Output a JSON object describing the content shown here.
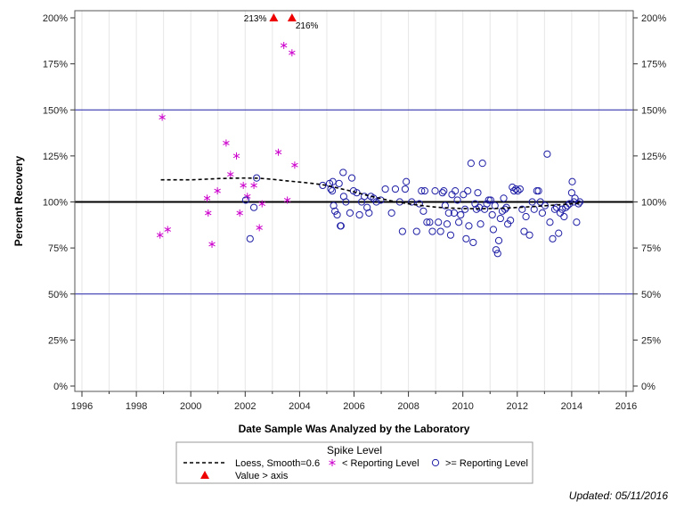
{
  "chart_data": {
    "type": "scatter",
    "xlabel": "Date Sample Was Analyzed by the Laboratory",
    "ylabel": "Percent Recovery",
    "xlim": [
      1996,
      2016
    ],
    "ylim": [
      0,
      205
    ],
    "x_ticks": [
      1996,
      1998,
      2000,
      2002,
      2004,
      2006,
      2008,
      2010,
      2012,
      2014,
      2016
    ],
    "x_tick_labels": [
      "1996",
      "1998",
      "2000",
      "2002",
      "2004",
      "2006",
      "2008",
      "2010",
      "2012",
      "2014",
      "2016"
    ],
    "y_ticks": [
      0,
      25,
      50,
      75,
      100,
      125,
      150,
      175,
      200
    ],
    "y_tick_labels": [
      "0%",
      "25%",
      "50%",
      "75%",
      "100%",
      "125%",
      "150%",
      "175%",
      "200%"
    ],
    "reference_lines": [
      {
        "y": 50,
        "color": "#1f1fa6",
        "style": "solid"
      },
      {
        "y": 100,
        "color": "#000000",
        "style": "solid-bold"
      },
      {
        "y": 150,
        "color": "#1f1fa6",
        "style": "solid"
      }
    ],
    "grid": "vertical-minor",
    "legend": {
      "title": "Spike Level",
      "placement": "bottom-center",
      "entries": [
        {
          "label": "Loess, Smooth=0.6",
          "marker": "dashed-line",
          "color": "#000000"
        },
        {
          "label": "< Reporting Level",
          "marker": "asterisk",
          "color": "#cc00cc"
        },
        {
          "label": ">= Reporting Level",
          "marker": "circle",
          "color": "#1f1fa6"
        },
        {
          "label": "Value > axis",
          "marker": "triangle",
          "color": "#ee0000"
        }
      ]
    },
    "footnote": "Updated: 05/11/2016",
    "series": [
      {
        "name": "< Reporting Level",
        "marker": "asterisk",
        "color": "#cc00cc",
        "points": [
          [
            1998.87,
            82
          ],
          [
            1998.95,
            146
          ],
          [
            1999.15,
            85
          ],
          [
            2000.6,
            102
          ],
          [
            2000.64,
            94
          ],
          [
            2000.78,
            77
          ],
          [
            2000.98,
            106
          ],
          [
            2001.3,
            132
          ],
          [
            2001.46,
            115
          ],
          [
            2001.68,
            125
          ],
          [
            2001.8,
            94
          ],
          [
            2001.93,
            109
          ],
          [
            2002.08,
            103
          ],
          [
            2002.32,
            109
          ],
          [
            2002.52,
            86
          ],
          [
            2002.62,
            99
          ],
          [
            2003.22,
            127
          ],
          [
            2003.42,
            185
          ],
          [
            2003.55,
            101
          ],
          [
            2003.72,
            181
          ],
          [
            2003.82,
            120
          ]
        ]
      },
      {
        "name": ">= Reporting Level",
        "marker": "circle",
        "color": "#1f1fa6",
        "points": [
          [
            2002.02,
            101
          ],
          [
            2002.18,
            80
          ],
          [
            2002.32,
            97
          ],
          [
            2002.42,
            113
          ],
          [
            2004.85,
            109
          ],
          [
            2005.1,
            110
          ],
          [
            2005.15,
            107
          ],
          [
            2005.2,
            106
          ],
          [
            2005.22,
            111
          ],
          [
            2005.25,
            98
          ],
          [
            2005.3,
            95
          ],
          [
            2005.38,
            93
          ],
          [
            2005.45,
            110
          ],
          [
            2005.5,
            87
          ],
          [
            2005.52,
            87
          ],
          [
            2005.6,
            116
          ],
          [
            2005.62,
            103
          ],
          [
            2005.7,
            100
          ],
          [
            2005.85,
            94
          ],
          [
            2005.92,
            113
          ],
          [
            2005.98,
            106
          ],
          [
            2006.1,
            105
          ],
          [
            2006.2,
            93
          ],
          [
            2006.28,
            100
          ],
          [
            2006.38,
            103
          ],
          [
            2006.48,
            97
          ],
          [
            2006.55,
            94
          ],
          [
            2006.62,
            103
          ],
          [
            2006.72,
            102
          ],
          [
            2006.82,
            100
          ],
          [
            2006.98,
            101
          ],
          [
            2007.15,
            107
          ],
          [
            2007.38,
            94
          ],
          [
            2007.52,
            107
          ],
          [
            2007.68,
            100
          ],
          [
            2007.78,
            84
          ],
          [
            2007.88,
            107
          ],
          [
            2007.92,
            111
          ],
          [
            2008.12,
            100
          ],
          [
            2008.3,
            84
          ],
          [
            2008.4,
            99
          ],
          [
            2008.48,
            106
          ],
          [
            2008.55,
            95
          ],
          [
            2008.6,
            106
          ],
          [
            2008.68,
            89
          ],
          [
            2008.78,
            89
          ],
          [
            2008.88,
            84
          ],
          [
            2008.98,
            106
          ],
          [
            2009.1,
            89
          ],
          [
            2009.18,
            84
          ],
          [
            2009.25,
            105
          ],
          [
            2009.3,
            106
          ],
          [
            2009.35,
            98
          ],
          [
            2009.42,
            88
          ],
          [
            2009.48,
            94
          ],
          [
            2009.55,
            82
          ],
          [
            2009.6,
            104
          ],
          [
            2009.68,
            94
          ],
          [
            2009.72,
            106
          ],
          [
            2009.8,
            101
          ],
          [
            2009.85,
            89
          ],
          [
            2009.92,
            93
          ],
          [
            2010.02,
            104
          ],
          [
            2010.08,
            96
          ],
          [
            2010.12,
            80
          ],
          [
            2010.18,
            106
          ],
          [
            2010.22,
            87
          ],
          [
            2010.3,
            121
          ],
          [
            2010.38,
            78
          ],
          [
            2010.45,
            99
          ],
          [
            2010.5,
            96
          ],
          [
            2010.55,
            105
          ],
          [
            2010.6,
            97
          ],
          [
            2010.65,
            88
          ],
          [
            2010.72,
            121
          ],
          [
            2010.8,
            96
          ],
          [
            2010.88,
            99
          ],
          [
            2010.95,
            101
          ],
          [
            2011.02,
            101
          ],
          [
            2011.08,
            93
          ],
          [
            2011.12,
            85
          ],
          [
            2011.18,
            98
          ],
          [
            2011.22,
            74
          ],
          [
            2011.28,
            72
          ],
          [
            2011.32,
            79
          ],
          [
            2011.38,
            91
          ],
          [
            2011.45,
            95
          ],
          [
            2011.5,
            102
          ],
          [
            2011.55,
            96
          ],
          [
            2011.6,
            97
          ],
          [
            2011.65,
            88
          ],
          [
            2011.75,
            90
          ],
          [
            2011.82,
            108
          ],
          [
            2011.88,
            106
          ],
          [
            2011.95,
            107
          ],
          [
            2012.02,
            106
          ],
          [
            2012.1,
            107
          ],
          [
            2012.18,
            96
          ],
          [
            2012.25,
            84
          ],
          [
            2012.32,
            92
          ],
          [
            2012.45,
            82
          ],
          [
            2012.55,
            100
          ],
          [
            2012.62,
            96
          ],
          [
            2012.72,
            106
          ],
          [
            2012.78,
            106
          ],
          [
            2012.85,
            100
          ],
          [
            2012.92,
            94
          ],
          [
            2013.02,
            98
          ],
          [
            2013.1,
            126
          ],
          [
            2013.2,
            89
          ],
          [
            2013.3,
            80
          ],
          [
            2013.38,
            96
          ],
          [
            2013.45,
            97
          ],
          [
            2013.52,
            83
          ],
          [
            2013.58,
            94
          ],
          [
            2013.65,
            96
          ],
          [
            2013.72,
            92
          ],
          [
            2013.78,
            97
          ],
          [
            2013.85,
            98
          ],
          [
            2013.92,
            99
          ],
          [
            2014.0,
            105
          ],
          [
            2014.02,
            111
          ],
          [
            2014.08,
            100
          ],
          [
            2014.12,
            102
          ],
          [
            2014.18,
            89
          ],
          [
            2014.25,
            99
          ],
          [
            2014.3,
            100
          ]
        ]
      },
      {
        "name": "Value > axis",
        "marker": "triangle",
        "color": "#ee0000",
        "points": [
          [
            2003.05,
            213
          ],
          [
            2003.72,
            216
          ]
        ],
        "labels": [
          "213%",
          "216%"
        ]
      },
      {
        "name": "Loess, Smooth=0.6",
        "marker": "dashed-line",
        "color": "#000000",
        "points": [
          [
            1998.9,
            112
          ],
          [
            1999.5,
            112
          ],
          [
            2000.0,
            112
          ],
          [
            2000.5,
            112.3
          ],
          [
            2001.0,
            112.7
          ],
          [
            2001.5,
            112.9
          ],
          [
            2002.0,
            113
          ],
          [
            2002.5,
            112.9
          ],
          [
            2003.0,
            112.3
          ],
          [
            2003.5,
            111.5
          ],
          [
            2004.0,
            110.8
          ],
          [
            2004.5,
            110
          ],
          [
            2005.0,
            109
          ],
          [
            2005.5,
            107.2
          ],
          [
            2006.0,
            105.5
          ],
          [
            2006.5,
            103.5
          ],
          [
            2007.0,
            101.8
          ],
          [
            2007.5,
            100.2
          ],
          [
            2008.0,
            99
          ],
          [
            2008.5,
            98
          ],
          [
            2009.0,
            97.2
          ],
          [
            2009.5,
            96.7
          ],
          [
            2010.0,
            96.4
          ],
          [
            2010.5,
            96.3
          ],
          [
            2011.0,
            96.4
          ],
          [
            2011.5,
            96.6
          ],
          [
            2012.0,
            97
          ],
          [
            2012.5,
            97.4
          ],
          [
            2013.0,
            97.9
          ],
          [
            2013.5,
            98.4
          ],
          [
            2014.0,
            99
          ],
          [
            2014.3,
            99.3
          ]
        ]
      }
    ]
  }
}
